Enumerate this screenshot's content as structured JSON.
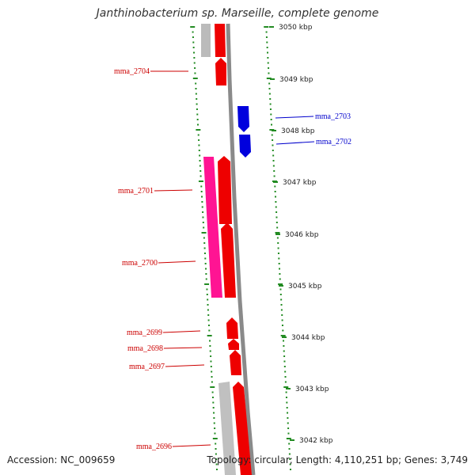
{
  "title": "Janthinobacterium sp. Marseille, complete genome",
  "accession": "Accession: NC_009659",
  "summary": "Topology: circular; Length: 4,110,251 bp; Genes: 3,749",
  "colors": {
    "forward_gene": "#ee0000",
    "reverse_gene": "#0000dd",
    "rna_gene": "#ff1493",
    "other_feature": "#bbbbbb",
    "backbone": "#888888",
    "ticks": "#228b22",
    "forward_label": "#cc0000",
    "reverse_label": "#0000cc"
  },
  "scale_labels": [
    "3050 kbp",
    "3049 kbp",
    "3048 kbp",
    "3047 kbp",
    "3046 kbp",
    "3045 kbp",
    "3044 kbp",
    "3043 kbp",
    "3042 kbp"
  ],
  "forward_labels": [
    "mma_2704",
    "mma_2701",
    "mma_2700",
    "mma_2699",
    "mma_2698",
    "mma_2697",
    "mma_2696"
  ],
  "reverse_labels": [
    "mma_2703",
    "mma_2702"
  ]
}
